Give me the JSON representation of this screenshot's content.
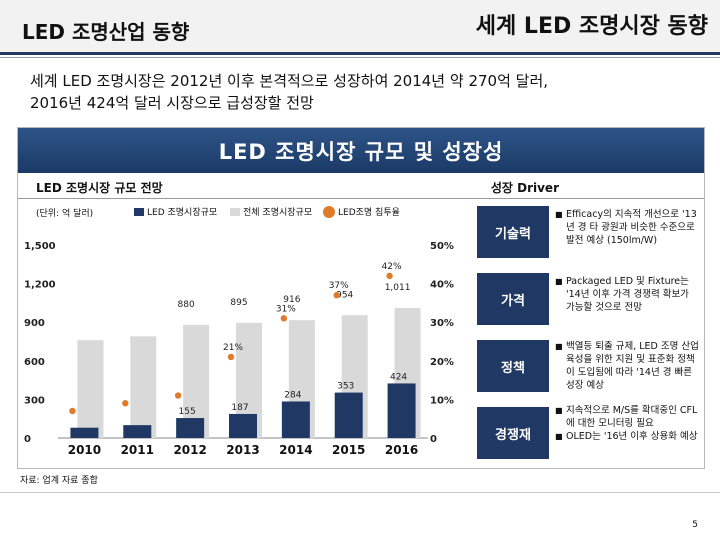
{
  "header": {
    "left_title": "LED 조명산업 동향",
    "right_title": "세계 LED 조명시장 동향"
  },
  "summary": {
    "line1": "세계 LED 조명시장은 2012년 이후 본격적으로 성장하여 2014년 약 270억 달러,",
    "line2": "2016년 424억 달러 시장으로 급성장할 전망"
  },
  "banner": {
    "title": "LED 조명시장 규모 및 성장성"
  },
  "left_section": {
    "title": "LED 조명시장 규모 전망",
    "unit": "(단위: 억 달러)"
  },
  "right_section": {
    "title": "성장 Driver"
  },
  "legend": {
    "led_label": "LED 조명시장규모",
    "total_label": "전체 조명시장규모",
    "rate_label": "LED조명 침투율",
    "led_color": "#1f3864",
    "total_color": "#d9d9d9",
    "rate_color": "#e07b2a"
  },
  "chart_data": {
    "type": "bar",
    "categories": [
      "2010",
      "2011",
      "2012",
      "2013",
      "2014",
      "2015",
      "2016"
    ],
    "series": [
      {
        "name": "LED 조명시장규모",
        "axis": "left",
        "values": [
          80,
          100,
          155,
          187,
          284,
          353,
          424
        ],
        "labels": [
          "",
          "",
          "155",
          "187",
          "284",
          "353",
          "424"
        ]
      },
      {
        "name": "전체 조명시장규모",
        "axis": "left",
        "values": [
          760,
          790,
          880,
          895,
          916,
          954,
          1011
        ],
        "labels": [
          "",
          "",
          "880",
          "895",
          "916",
          "954",
          "1,011"
        ]
      },
      {
        "name": "LED조명 침투율",
        "axis": "right",
        "type": "scatter",
        "values": [
          7,
          9,
          11,
          21,
          31,
          37,
          42
        ],
        "labels": [
          "",
          "",
          "",
          "21%",
          "31%",
          "37%",
          "42%"
        ]
      }
    ],
    "left_axis": {
      "range": [
        0,
        1500
      ],
      "ticks": [
        "0",
        "300",
        "600",
        "900",
        "1,200",
        "1,500"
      ]
    },
    "right_axis": {
      "range": [
        0,
        50
      ],
      "ticks": [
        "0",
        "10%",
        "20%",
        "30%",
        "40%",
        "50%"
      ]
    }
  },
  "drivers": [
    {
      "label": "기술력",
      "text": "Efficacy의 지속적 개선으로 '13년 경 타 광원과 비슷한 수준으로 발전 예상 (150lm/W)"
    },
    {
      "label": "가격",
      "text": "Packaged LED 및 Fixture는 '14년 이후 가격 경쟁력 확보가 가능할 것으로 전망"
    },
    {
      "label": "정책",
      "text": "백열등 퇴출 규제, LED 조명 산업 육성을 위한 지원 및 표준화 정책이 도입됨에 따라 '14년 경 빠른 성장 예상"
    },
    {
      "label": "경쟁재",
      "text": "지속적으로 M/S를 확대중인 CFL에 대한 모니터링 필요",
      "text2": "OLED는 '16년 이후 상용화 예상"
    }
  ],
  "footer": {
    "source": "자료: 업계 자료 종합",
    "page_number": "5"
  }
}
